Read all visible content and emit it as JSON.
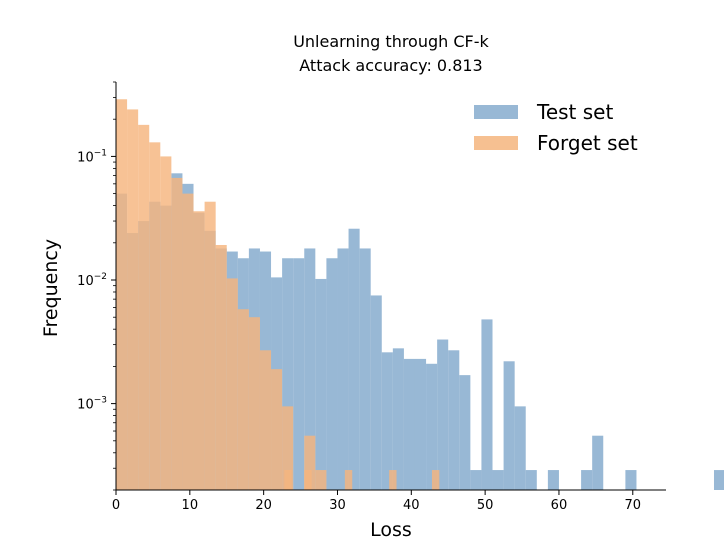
{
  "chart_data": {
    "type": "bar",
    "title": "Unlearning through CF-k",
    "subtitle": "Attack accuracy: 0.813",
    "xlabel": "Loss",
    "ylabel": "Frequency",
    "xlim": [
      0,
      74.5
    ],
    "ylim": [
      0.0002,
      0.4
    ],
    "yscale": "log",
    "x_ticks": [
      0,
      10,
      20,
      30,
      40,
      50,
      60,
      70
    ],
    "y_ticks": [
      {
        "value": 0.1,
        "base": "10",
        "exp": "−1"
      },
      {
        "value": 0.01,
        "base": "10",
        "exp": "−2"
      },
      {
        "value": 0.001,
        "base": "10",
        "exp": "−3"
      }
    ],
    "legend_position": "top-right",
    "bin_width": 1.5,
    "series": [
      {
        "name": "Test set",
        "color": "#7ea6cb",
        "values": [
          0.05,
          0.024,
          0.03,
          0.043,
          0.04,
          0.073,
          0.06,
          0.035,
          0.025,
          0.018,
          0.017,
          0.015,
          0.018,
          0.017,
          0.0105,
          0.015,
          0.015,
          0.018,
          0.0102,
          0.015,
          0.018,
          0.026,
          0.018,
          0.0075,
          0.0026,
          0.0028,
          0.0023,
          0.0023,
          0.0021,
          0.0033,
          0.0027,
          0.0017,
          0.00029,
          0.0048,
          0.00029,
          0.0022,
          0.00095,
          0.00029,
          0,
          0.00029,
          0,
          0,
          0.00029,
          0.00055,
          0,
          0,
          0.00029,
          0,
          0,
          0,
          0,
          0,
          0,
          0,
          0.00029
        ]
      },
      {
        "name": "Forget set",
        "color": "#f5b57e",
        "values": [
          0.29,
          0.24,
          0.18,
          0.13,
          0.1,
          0.067,
          0.05,
          0.036,
          0.043,
          0.0192,
          0.0103,
          0.0058,
          0.005,
          0.0027,
          0.0019,
          0.00095,
          0,
          0.00055,
          0.00029,
          0,
          0,
          0,
          0,
          0,
          0,
          0,
          0,
          0,
          0,
          0,
          0,
          0,
          0,
          0,
          0,
          0,
          0,
          0,
          0,
          0,
          0,
          0,
          0,
          0,
          0,
          0,
          0,
          0,
          0,
          0,
          0,
          0,
          0,
          0,
          0
        ],
        "extra_bins": [
          {
            "x": 22.8,
            "value": 0.00029
          },
          {
            "x": 25.5,
            "value": 0.00029
          },
          {
            "x": 31.0,
            "value": 0.00029
          },
          {
            "x": 37.0,
            "value": 0.00029
          },
          {
            "x": 42.8,
            "value": 0.00029
          }
        ]
      }
    ]
  }
}
